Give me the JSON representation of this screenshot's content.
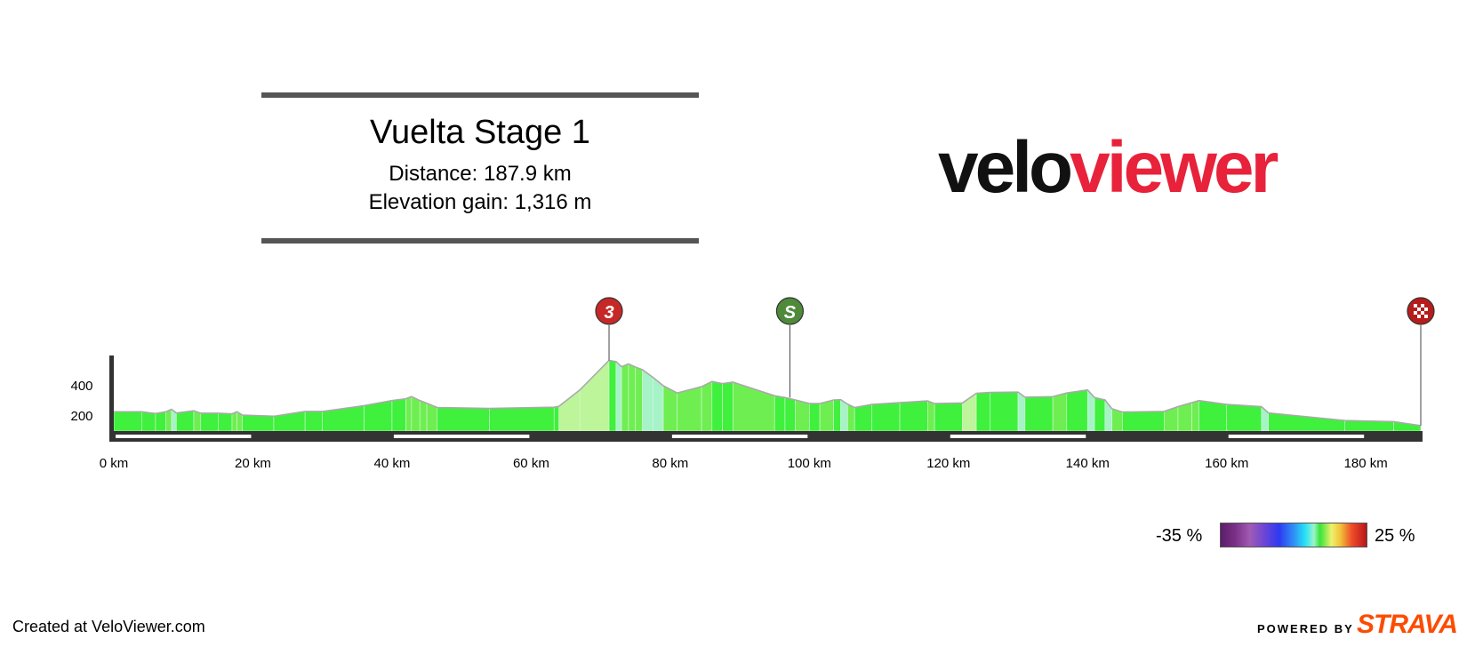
{
  "header": {
    "title": "Vuelta Stage 1",
    "distance_text": "Distance: 187.9 km",
    "elevation_text": "Elevation gain: 1,316 m"
  },
  "logo": {
    "part1": "velo",
    "part2": "viewer"
  },
  "legend": {
    "min_label": "-35 %",
    "max_label": "25 %"
  },
  "footer": {
    "created": "Created at VeloViewer.com",
    "powered_by": "POWERED BY",
    "brand": "STRAVA"
  },
  "colors": {
    "axis": "#333333",
    "outline": "#aaaaaa",
    "kom_marker": "#c62828",
    "sprint_marker": "#4e8a3a",
    "finish_marker": "#b71c1c"
  },
  "chart_data": {
    "type": "area",
    "title": "",
    "xlabel": "",
    "ylabel": "",
    "xlim": [
      0,
      187.9
    ],
    "ylim": [
      100,
      700
    ],
    "x_ticks": [
      0,
      20,
      40,
      60,
      80,
      100,
      120,
      140,
      160,
      180
    ],
    "x_tick_labels": [
      "0 km",
      "20 km",
      "40 km",
      "60 km",
      "80 km",
      "100 km",
      "120 km",
      "140 km",
      "160 km",
      "180 km"
    ],
    "y_ticks": [
      200,
      400
    ],
    "y_tick_labels": [
      "200",
      "400"
    ],
    "profile": [
      {
        "km": 0,
        "elev": 222
      },
      {
        "km": 4,
        "elev": 222
      },
      {
        "km": 6,
        "elev": 210
      },
      {
        "km": 7.5,
        "elev": 222
      },
      {
        "km": 8.3,
        "elev": 238
      },
      {
        "km": 9,
        "elev": 214
      },
      {
        "km": 11.5,
        "elev": 228
      },
      {
        "km": 12.5,
        "elev": 212
      },
      {
        "km": 15,
        "elev": 212
      },
      {
        "km": 17,
        "elev": 208
      },
      {
        "km": 17.7,
        "elev": 222
      },
      {
        "km": 18.5,
        "elev": 200
      },
      {
        "km": 23,
        "elev": 192
      },
      {
        "km": 27.5,
        "elev": 224
      },
      {
        "km": 30,
        "elev": 224
      },
      {
        "km": 36,
        "elev": 262
      },
      {
        "km": 40,
        "elev": 296
      },
      {
        "km": 42,
        "elev": 308
      },
      {
        "km": 42.8,
        "elev": 322
      },
      {
        "km": 44,
        "elev": 296
      },
      {
        "km": 45,
        "elev": 278
      },
      {
        "km": 46.5,
        "elev": 250
      },
      {
        "km": 54,
        "elev": 244
      },
      {
        "km": 63.3,
        "elev": 252
      },
      {
        "km": 64,
        "elev": 258
      },
      {
        "km": 67,
        "elev": 366
      },
      {
        "km": 71.2,
        "elev": 562
      },
      {
        "km": 72.2,
        "elev": 554
      },
      {
        "km": 73,
        "elev": 520
      },
      {
        "km": 74,
        "elev": 538
      },
      {
        "km": 75,
        "elev": 518
      },
      {
        "km": 76,
        "elev": 500
      },
      {
        "km": 77.5,
        "elev": 450
      },
      {
        "km": 79,
        "elev": 394
      },
      {
        "km": 81,
        "elev": 346
      },
      {
        "km": 84.5,
        "elev": 388
      },
      {
        "km": 86,
        "elev": 422
      },
      {
        "km": 87.5,
        "elev": 408
      },
      {
        "km": 89,
        "elev": 418
      },
      {
        "km": 95,
        "elev": 328
      },
      {
        "km": 96.5,
        "elev": 316
      },
      {
        "km": 98,
        "elev": 300
      },
      {
        "km": 100,
        "elev": 276
      },
      {
        "km": 101.5,
        "elev": 276
      },
      {
        "km": 103.5,
        "elev": 300
      },
      {
        "km": 104.5,
        "elev": 302
      },
      {
        "km": 105.5,
        "elev": 272
      },
      {
        "km": 106.5,
        "elev": 250
      },
      {
        "km": 109,
        "elev": 270
      },
      {
        "km": 113,
        "elev": 282
      },
      {
        "km": 117,
        "elev": 294
      },
      {
        "km": 118,
        "elev": 276
      },
      {
        "km": 122,
        "elev": 280
      },
      {
        "km": 124,
        "elev": 344
      },
      {
        "km": 126,
        "elev": 350
      },
      {
        "km": 130,
        "elev": 352
      },
      {
        "km": 131,
        "elev": 318
      },
      {
        "km": 135,
        "elev": 322
      },
      {
        "km": 137,
        "elev": 346
      },
      {
        "km": 140,
        "elev": 366
      },
      {
        "km": 141,
        "elev": 316
      },
      {
        "km": 142.5,
        "elev": 300
      },
      {
        "km": 143.5,
        "elev": 242
      },
      {
        "km": 145,
        "elev": 220
      },
      {
        "km": 151,
        "elev": 224
      },
      {
        "km": 153,
        "elev": 256
      },
      {
        "km": 155,
        "elev": 282
      },
      {
        "km": 156,
        "elev": 296
      },
      {
        "km": 160,
        "elev": 270
      },
      {
        "km": 165,
        "elev": 256
      },
      {
        "km": 166,
        "elev": 214
      },
      {
        "km": 177,
        "elev": 164
      },
      {
        "km": 184,
        "elev": 156
      },
      {
        "km": 187.9,
        "elev": 130
      }
    ],
    "markers": [
      {
        "type": "kom",
        "label": "3",
        "km": 71.2
      },
      {
        "type": "sprint",
        "label": "S",
        "km": 97.2
      },
      {
        "type": "finish",
        "label": "",
        "km": 187.9
      }
    ],
    "gradient_scale": {
      "min": -35,
      "max": 25
    }
  }
}
